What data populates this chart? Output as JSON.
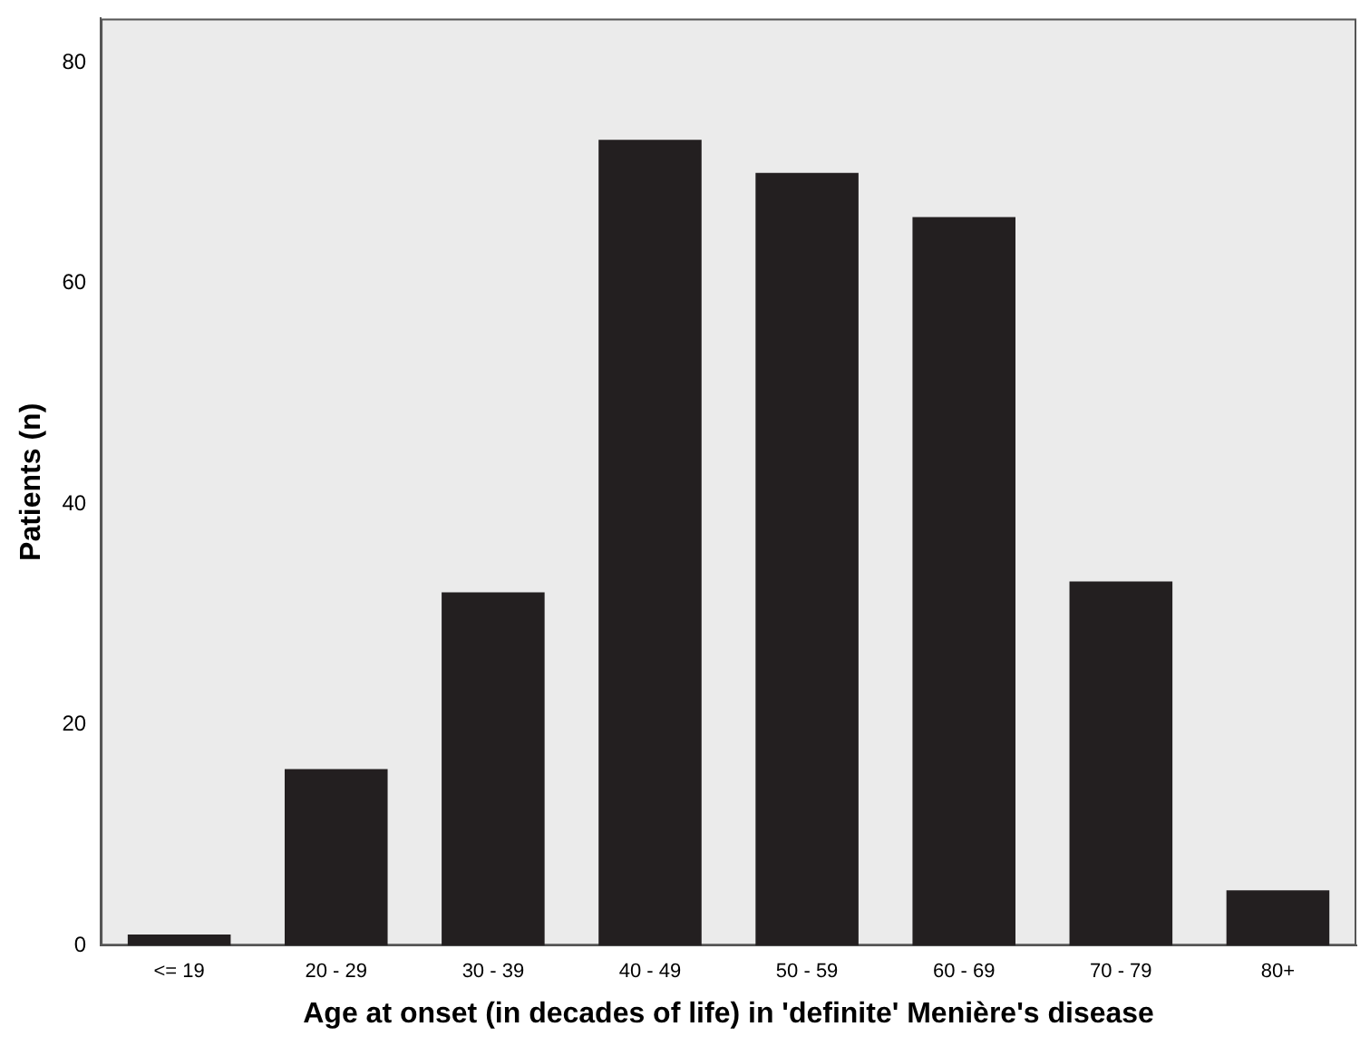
{
  "chart_data": {
    "type": "bar",
    "xlabel": "Age at onset (in decades of life) in 'definite' Menière's disease",
    "ylabel": "Patients (n)",
    "categories": [
      "<= 19",
      "20 - 29",
      "30 - 39",
      "40 - 49",
      "50 - 59",
      "60 - 69",
      "70 - 79",
      "80+"
    ],
    "values": [
      1,
      16,
      32,
      73,
      70,
      66,
      33,
      5
    ],
    "color": "#231f20",
    "ylim": [
      0,
      84
    ],
    "yticks": [
      0,
      20,
      40,
      60,
      80
    ],
    "grid": false,
    "legend": false
  }
}
